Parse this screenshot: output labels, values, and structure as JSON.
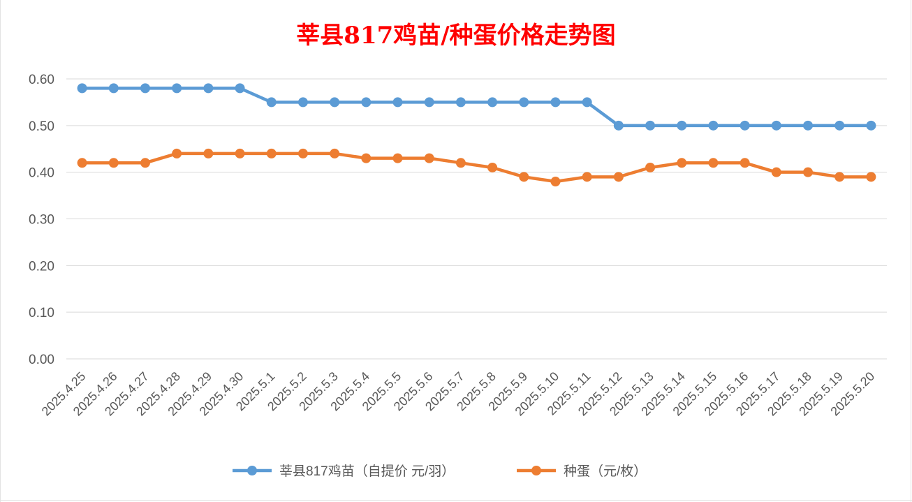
{
  "colors": {
    "title": "#ff0000",
    "series1": "#5b9bd5",
    "series2": "#ed7d31",
    "grid": "#d9d9d9",
    "text": "#595959"
  },
  "chart_data": {
    "type": "line",
    "title": "莘县817鸡苗/种蛋价格走势图",
    "xlabel": "",
    "ylabel": "",
    "ylim": [
      0,
      0.6
    ],
    "yticks": [
      "0.00",
      "0.10",
      "0.20",
      "0.30",
      "0.40",
      "0.50",
      "0.60"
    ],
    "grid": "horizontal",
    "legend_position": "bottom",
    "x": [
      "2025.4.25",
      "2025.4.26",
      "2025.4.27",
      "2025.4.28",
      "2025.4.29",
      "2025.4.30",
      "2025.5.1",
      "2025.5.2",
      "2025.5.3",
      "2025.5.4",
      "2025.5.5",
      "2025.5.6",
      "2025.5.7",
      "2025.5.8",
      "2025.5.9",
      "2025.5.10",
      "2025.5.11",
      "2025.5.12",
      "2025.5.13",
      "2025.5.14",
      "2025.5.15",
      "2025.5.16",
      "2025.5.17",
      "2025.5.18",
      "2025.5.19",
      "2025.5.20"
    ],
    "series": [
      {
        "name": "莘县817鸡苗（自提价 元/羽）",
        "color": "#5b9bd5",
        "values": [
          0.58,
          0.58,
          0.58,
          0.58,
          0.58,
          0.58,
          0.55,
          0.55,
          0.55,
          0.55,
          0.55,
          0.55,
          0.55,
          0.55,
          0.55,
          0.55,
          0.55,
          0.5,
          0.5,
          0.5,
          0.5,
          0.5,
          0.5,
          0.5,
          0.5,
          0.5
        ]
      },
      {
        "name": "种蛋（元/枚）",
        "color": "#ed7d31",
        "values": [
          0.42,
          0.42,
          0.42,
          0.44,
          0.44,
          0.44,
          0.44,
          0.44,
          0.44,
          0.43,
          0.43,
          0.43,
          0.42,
          0.41,
          0.39,
          0.38,
          0.39,
          0.39,
          0.41,
          0.42,
          0.42,
          0.42,
          0.4,
          0.4,
          0.39,
          0.39
        ]
      }
    ]
  }
}
